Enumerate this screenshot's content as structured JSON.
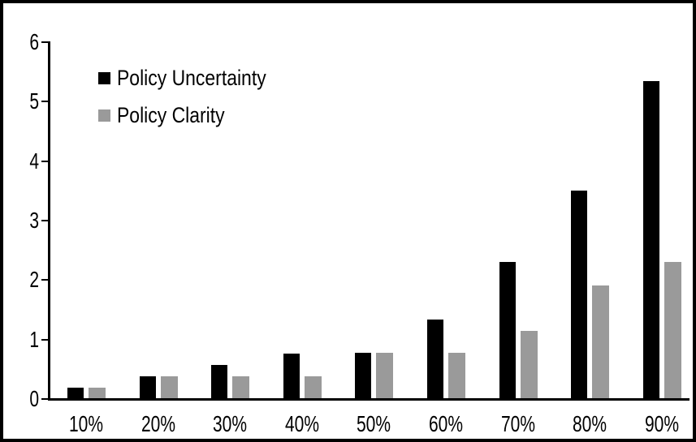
{
  "chart_data": {
    "type": "bar",
    "title": "",
    "categories": [
      "10%",
      "20%",
      "30%",
      "40%",
      "50%",
      "60%",
      "70%",
      "80%",
      "90%"
    ],
    "series": [
      {
        "name": "Policy Uncertainty",
        "color": "#000000",
        "values": [
          0.19,
          0.38,
          0.57,
          0.76,
          0.78,
          1.34,
          2.31,
          3.51,
          5.34
        ]
      },
      {
        "name": "Policy Clarity",
        "color": "#9a9a9a",
        "values": [
          0.19,
          0.38,
          0.38,
          0.38,
          0.78,
          0.78,
          1.15,
          1.91,
          2.31
        ]
      }
    ],
    "xlabel": "",
    "ylabel": "",
    "y_axis": {
      "min": 0,
      "max": 6,
      "tick_interval": 1,
      "tick_labels": [
        "0",
        "1",
        "2",
        "3",
        "4",
        "5",
        "6"
      ]
    },
    "legend": {
      "position": "top-left-inside"
    },
    "grid": false,
    "colors": {
      "background": "#ffffff",
      "frame_border": "#000000",
      "axis": "#000000",
      "text": "#000000"
    }
  }
}
